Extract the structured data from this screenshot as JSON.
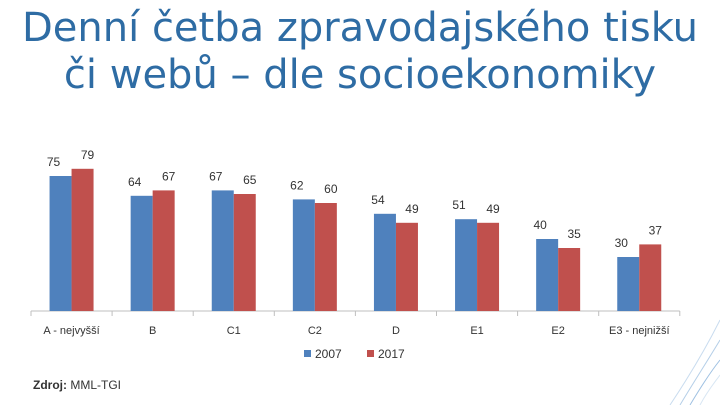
{
  "title": {
    "line1": "Denní četba zpravodajského tisku",
    "line2": "či webů – dle socioekonomiky"
  },
  "source": {
    "label": "Zdroj:",
    "value": "MML-TGI"
  },
  "colors": {
    "title": "#2e6ca4",
    "series_2007": "#4f81bd",
    "series_2017": "#c0504d"
  },
  "chart_data": {
    "type": "bar",
    "title": "Denní četba zpravodajského tisku či webů – dle socioekonomiky",
    "categories": [
      "A - nejvyšší",
      "B",
      "C1",
      "C2",
      "D",
      "E1",
      "E2",
      "E3 - nejnižší"
    ],
    "series": [
      {
        "name": "2007",
        "values": [
          75,
          64,
          67,
          62,
          54,
          51,
          40,
          30
        ]
      },
      {
        "name": "2017",
        "values": [
          79,
          67,
          65,
          60,
          49,
          49,
          35,
          37
        ]
      }
    ],
    "ylim": [
      0,
      100
    ],
    "legend": "bottom",
    "grid": false,
    "xlabel": "",
    "ylabel": ""
  }
}
